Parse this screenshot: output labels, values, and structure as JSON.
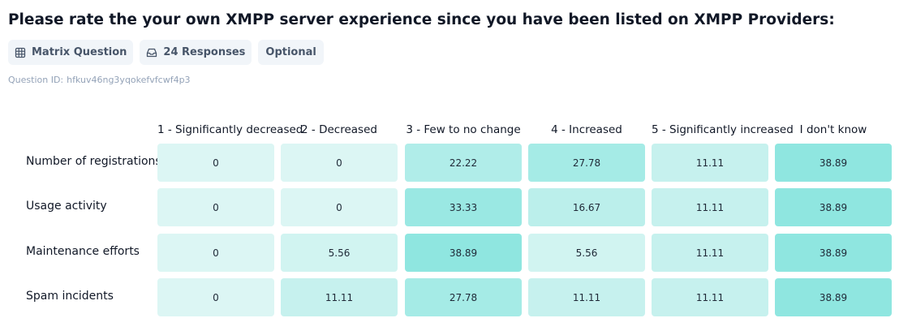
{
  "question": {
    "title": "Please rate the your own XMPP server experience since you have been listed on XMPP Providers:",
    "badges": [
      {
        "label": "Matrix Question",
        "icon": "grid-icon"
      },
      {
        "label": "24 Responses",
        "icon": "inbox-icon"
      },
      {
        "label": "Optional",
        "icon": ""
      }
    ],
    "id_label": "Question ID:",
    "id_value": "hfkuv46ng3yqokefvfcwf4p3"
  },
  "matrix": {
    "columns": [
      "1 - Significantly decreased",
      "2 - Decreased",
      "3 - Few to no change",
      "4 - Increased",
      "5 - Significantly increased",
      "I don't know"
    ],
    "rows": [
      {
        "label": "Number of registrations",
        "values": [
          "0",
          "0",
          "22.22",
          "27.78",
          "11.11",
          "38.89"
        ]
      },
      {
        "label": "Usage activity",
        "values": [
          "0",
          "0",
          "33.33",
          "16.67",
          "11.11",
          "38.89"
        ]
      },
      {
        "label": "Maintenance efforts",
        "values": [
          "0",
          "5.56",
          "38.89",
          "5.56",
          "11.11",
          "38.89"
        ]
      },
      {
        "label": "Spam incidents",
        "values": [
          "0",
          "11.11",
          "27.78",
          "11.11",
          "11.11",
          "38.89"
        ]
      }
    ],
    "colors": {
      "min": "#dcf6f4",
      "max": "#8fe6e0"
    }
  }
}
